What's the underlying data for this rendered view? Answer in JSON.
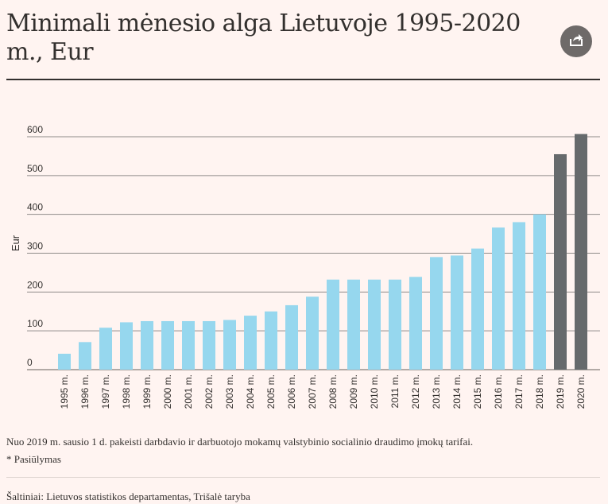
{
  "header": {
    "title": "Minimali mėnesio alga Lietuvoje 1995-2020 m., Eur",
    "share_icon": "share-icon"
  },
  "notes": {
    "footnote": "Nuo 2019 m. sausio 1 d. pakeisti darbdavio ir darbuotojo mokamų valstybinio socialinio draudimo įmokų tarifai.",
    "proposal": "*  Pasiūlymas",
    "source": "Šaltiniai: Lietuvos statistikos departamentas, Trišalė taryba"
  },
  "colors": {
    "background": "#fff4f1",
    "bar_actual": "#96d7ee",
    "bar_highlight": "#666a6c",
    "grid": "#8f8b89",
    "text": "#33302e"
  },
  "chart_data": {
    "type": "bar",
    "title": "Minimali mėnesio alga Lietuvoje 1995-2020 m., Eur",
    "ylabel": "Eur",
    "xlabel": "",
    "ylim": [
      0,
      600
    ],
    "yticks": [
      0,
      100,
      200,
      300,
      400,
      500,
      600
    ],
    "grid": true,
    "categories": [
      "1995 m.",
      "1996 m.",
      "1997 m.",
      "1998 m.",
      "1999 m.",
      "2000 m.",
      "2001 m.",
      "2002 m.",
      "2003 m.",
      "2004 m.",
      "2005 m.",
      "2006 m.",
      "2007 m.",
      "2008 m.",
      "2009 m.",
      "2010 m.",
      "2011 m.",
      "2012 m.",
      "2013 m.",
      "2014 m.",
      "2015 m.",
      "2016 m.",
      "2017 m.",
      "2018 m.",
      "2019 m.",
      "2020 m."
    ],
    "values": [
      41,
      71,
      108,
      122,
      125,
      125,
      125,
      125,
      128,
      139,
      150,
      166,
      188,
      232,
      232,
      232,
      232,
      239,
      290,
      294,
      312,
      366,
      380,
      400,
      555,
      607
    ],
    "highlighted_categories": [
      "2019 m.",
      "2020 m."
    ]
  }
}
